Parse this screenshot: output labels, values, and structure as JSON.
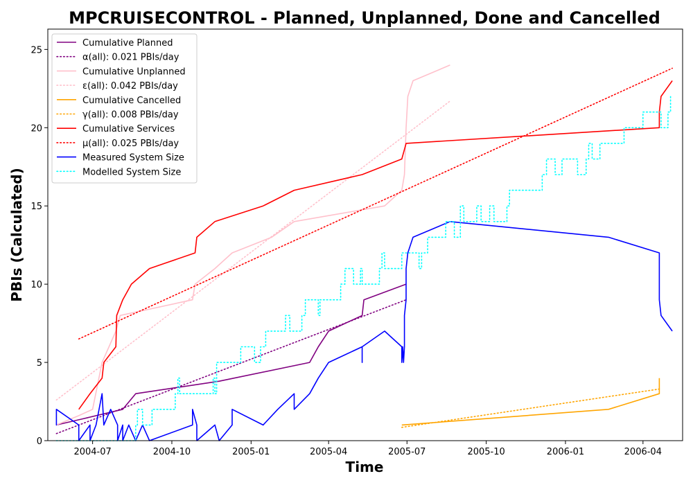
{
  "chart_data": {
    "type": "line",
    "title": "MPCRUISECONTROL - Planned, Unplanned, Done  and Cancelled",
    "xlabel": "Time",
    "ylabel": "PBIs (Calculated)",
    "xlim": [
      "2004-05-10",
      "2006-05-17"
    ],
    "ylim": [
      0,
      26.3
    ],
    "x_ticks": [
      "2004-07",
      "2004-10",
      "2005-01",
      "2005-04",
      "2005-07",
      "2005-10",
      "2006-01",
      "2006-04"
    ],
    "y_ticks": [
      0,
      5,
      10,
      15,
      20,
      25
    ],
    "grid": false,
    "legend_position": "top-left",
    "series": [
      {
        "name": "Cumulative Planned",
        "color": "#800080",
        "style": "solid",
        "points": [
          [
            "2004-05-20",
            1
          ],
          [
            "2004-06-20",
            1.4
          ],
          [
            "2004-08-05",
            2
          ],
          [
            "2004-08-20",
            3
          ],
          [
            "2004-11-25",
            3.8
          ],
          [
            "2005-03-10",
            5
          ],
          [
            "2005-03-20",
            6
          ],
          [
            "2005-04-01",
            7
          ],
          [
            "2005-05-10",
            8
          ],
          [
            "2005-05-12",
            9
          ],
          [
            "2005-06-30",
            10
          ]
        ]
      },
      {
        "name": "α(all): 0.021 PBIs/day",
        "color": "#800080",
        "style": "dotted",
        "points": [
          [
            "2004-05-20",
            0.45
          ],
          [
            "2005-06-30",
            9.0
          ]
        ]
      },
      {
        "name": "Cumulative Unplanned",
        "color": "#ffc0cb",
        "style": "solid",
        "points": [
          [
            "2004-05-20",
            1
          ],
          [
            "2004-06-15",
            1.6
          ],
          [
            "2004-07-01",
            2
          ],
          [
            "2004-07-12",
            5
          ],
          [
            "2004-07-28",
            7
          ],
          [
            "2004-08-02",
            8
          ],
          [
            "2004-10-25",
            9
          ],
          [
            "2004-10-28",
            10
          ],
          [
            "2004-11-20",
            11
          ],
          [
            "2004-12-10",
            12
          ],
          [
            "2005-01-25",
            13
          ],
          [
            "2005-02-20",
            14
          ],
          [
            "2005-06-05",
            15
          ],
          [
            "2005-06-25",
            16
          ],
          [
            "2005-06-28",
            17
          ],
          [
            "2005-06-30",
            20
          ],
          [
            "2005-07-02",
            22
          ],
          [
            "2005-07-08",
            23
          ],
          [
            "2005-08-20",
            24
          ]
        ]
      },
      {
        "name": "ε(all): 0.042 PBIs/day",
        "color": "#ffc0cb",
        "style": "dotted",
        "points": [
          [
            "2004-05-20",
            2.6
          ],
          [
            "2005-08-20",
            21.7
          ]
        ]
      },
      {
        "name": "Cumulative Cancelled",
        "color": "#ffa500",
        "style": "solid",
        "points": [
          [
            "2005-06-25",
            1
          ],
          [
            "2006-02-20",
            2
          ],
          [
            "2006-04-20",
            3
          ],
          [
            "2006-04-20",
            4
          ]
        ]
      },
      {
        "name": "γ(all): 0.008 PBIs/day",
        "color": "#ffa500",
        "style": "dotted",
        "points": [
          [
            "2005-06-25",
            0.85
          ],
          [
            "2006-04-20",
            3.3
          ]
        ]
      },
      {
        "name": "Cumulative Services",
        "color": "#ff0000",
        "style": "solid",
        "points": [
          [
            "2004-06-15",
            2
          ],
          [
            "2004-06-28",
            3
          ],
          [
            "2004-07-12",
            4
          ],
          [
            "2004-07-14",
            5
          ],
          [
            "2004-07-28",
            6
          ],
          [
            "2004-07-29",
            8
          ],
          [
            "2004-08-05",
            9
          ],
          [
            "2004-08-15",
            10
          ],
          [
            "2004-09-05",
            11
          ],
          [
            "2004-10-28",
            12
          ],
          [
            "2004-10-30",
            13
          ],
          [
            "2004-11-20",
            14
          ],
          [
            "2005-01-15",
            15
          ],
          [
            "2005-02-20",
            16
          ],
          [
            "2005-05-10",
            17
          ],
          [
            "2005-06-25",
            18
          ],
          [
            "2005-06-30",
            19
          ],
          [
            "2006-04-20",
            20
          ],
          [
            "2006-04-20",
            21
          ],
          [
            "2006-04-22",
            22
          ],
          [
            "2006-05-05",
            23
          ]
        ]
      },
      {
        "name": "μ(all): 0.025 PBIs/day",
        "color": "#ff0000",
        "style": "dotted",
        "points": [
          [
            "2004-06-15",
            6.5
          ],
          [
            "2006-05-05",
            23.8
          ]
        ]
      },
      {
        "name": "Measured System Size",
        "color": "#0000ff",
        "style": "solid",
        "points": [
          [
            "2004-05-20",
            2
          ],
          [
            "2004-05-20",
            1
          ],
          [
            "2004-05-20",
            2
          ],
          [
            "2004-06-15",
            1
          ],
          [
            "2004-06-15",
            0
          ],
          [
            "2004-06-28",
            1
          ],
          [
            "2004-06-28",
            0
          ],
          [
            "2004-07-05",
            1
          ],
          [
            "2004-07-12",
            3
          ],
          [
            "2004-07-14",
            1
          ],
          [
            "2004-07-22",
            2
          ],
          [
            "2004-07-30",
            1
          ],
          [
            "2004-07-30",
            0
          ],
          [
            "2004-08-05",
            1
          ],
          [
            "2004-08-05",
            0
          ],
          [
            "2004-08-12",
            1
          ],
          [
            "2004-08-20",
            0
          ],
          [
            "2004-08-28",
            1
          ],
          [
            "2004-09-05",
            0
          ],
          [
            "2004-10-25",
            1
          ],
          [
            "2004-10-25",
            2
          ],
          [
            "2004-10-30",
            1
          ],
          [
            "2004-10-30",
            0
          ],
          [
            "2004-11-20",
            1
          ],
          [
            "2004-11-25",
            0
          ],
          [
            "2004-12-10",
            1
          ],
          [
            "2004-12-10",
            2
          ],
          [
            "2005-01-15",
            1
          ],
          [
            "2005-02-01",
            2
          ],
          [
            "2005-02-20",
            3
          ],
          [
            "2005-02-20",
            2
          ],
          [
            "2005-03-10",
            3
          ],
          [
            "2005-03-20",
            4
          ],
          [
            "2005-04-01",
            5
          ],
          [
            "2005-05-10",
            6
          ],
          [
            "2005-05-10",
            5
          ],
          [
            "2005-05-10",
            6
          ],
          [
            "2005-06-05",
            7
          ],
          [
            "2005-06-25",
            6
          ],
          [
            "2005-06-25",
            5
          ],
          [
            "2005-06-26",
            6
          ],
          [
            "2005-06-27",
            5
          ],
          [
            "2005-06-28",
            6
          ],
          [
            "2005-06-28",
            8
          ],
          [
            "2005-06-30",
            9
          ],
          [
            "2005-06-30",
            11
          ],
          [
            "2005-07-02",
            12
          ],
          [
            "2005-07-08",
            13
          ],
          [
            "2005-08-20",
            14
          ],
          [
            "2006-02-20",
            13
          ],
          [
            "2006-04-20",
            12
          ],
          [
            "2006-04-20",
            9
          ],
          [
            "2006-04-22",
            8
          ],
          [
            "2006-05-05",
            7
          ]
        ]
      },
      {
        "name": "Modelled System Size",
        "color": "#00ffff",
        "style": "dotted",
        "points": [
          [
            "2004-05-20",
            0
          ],
          [
            "2004-08-15",
            0
          ],
          [
            "2004-08-20",
            1
          ],
          [
            "2004-08-22",
            2
          ],
          [
            "2004-08-28",
            1
          ],
          [
            "2004-09-08",
            2
          ],
          [
            "2004-10-05",
            3
          ],
          [
            "2004-10-08",
            4
          ],
          [
            "2004-10-10",
            3
          ],
          [
            "2004-11-15",
            3
          ],
          [
            "2004-11-18",
            4
          ],
          [
            "2004-11-20",
            3
          ],
          [
            "2004-11-22",
            5
          ],
          [
            "2004-12-20",
            6
          ],
          [
            "2005-01-05",
            5
          ],
          [
            "2005-01-12",
            6
          ],
          [
            "2005-01-18",
            7
          ],
          [
            "2005-02-10",
            8
          ],
          [
            "2005-02-15",
            7
          ],
          [
            "2005-03-01",
            8
          ],
          [
            "2005-03-05",
            9
          ],
          [
            "2005-03-20",
            8
          ],
          [
            "2005-03-22",
            9
          ],
          [
            "2005-04-15",
            10
          ],
          [
            "2005-04-20",
            11
          ],
          [
            "2005-04-30",
            10
          ],
          [
            "2005-05-08",
            11
          ],
          [
            "2005-05-10",
            10
          ],
          [
            "2005-05-30",
            11
          ],
          [
            "2005-06-02",
            12
          ],
          [
            "2005-06-05",
            11
          ],
          [
            "2005-06-25",
            12
          ],
          [
            "2005-07-15",
            11
          ],
          [
            "2005-07-18",
            12
          ],
          [
            "2005-07-25",
            13
          ],
          [
            "2005-08-15",
            14
          ],
          [
            "2005-08-25",
            13
          ],
          [
            "2005-09-01",
            15
          ],
          [
            "2005-09-05",
            14
          ],
          [
            "2005-09-20",
            15
          ],
          [
            "2005-09-25",
            14
          ],
          [
            "2005-10-05",
            15
          ],
          [
            "2005-10-10",
            14
          ],
          [
            "2005-10-25",
            15
          ],
          [
            "2005-10-28",
            16
          ],
          [
            "2005-12-05",
            17
          ],
          [
            "2005-12-10",
            18
          ],
          [
            "2005-12-20",
            17
          ],
          [
            "2005-12-28",
            18
          ],
          [
            "2006-01-15",
            17
          ],
          [
            "2006-01-25",
            18
          ],
          [
            "2006-01-28",
            19
          ],
          [
            "2006-02-01",
            18
          ],
          [
            "2006-02-10",
            19
          ],
          [
            "2006-03-10",
            20
          ],
          [
            "2006-04-01",
            21
          ],
          [
            "2006-04-22",
            20
          ],
          [
            "2006-04-30",
            21
          ],
          [
            "2006-05-03",
            22
          ]
        ]
      }
    ]
  }
}
